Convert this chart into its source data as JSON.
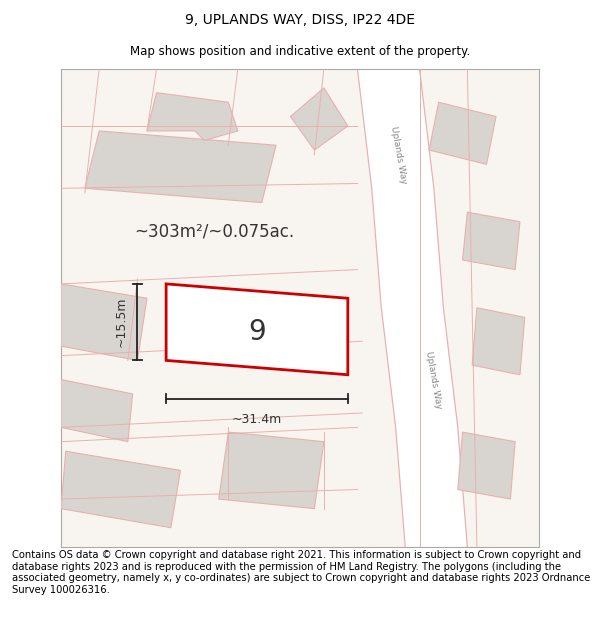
{
  "title": "9, UPLANDS WAY, DISS, IP22 4DE",
  "subtitle": "Map shows position and indicative extent of the property.",
  "footer": "Contains OS data © Crown copyright and database right 2021. This information is subject to Crown copyright and database rights 2023 and is reproduced with the permission of HM Land Registry. The polygons (including the associated geometry, namely x, y co-ordinates) are subject to Crown copyright and database rights 2023 Ordnance Survey 100026316.",
  "area_text": "~303m²/~0.075ac.",
  "width_text": "~31.4m",
  "height_text": "~15.5m",
  "house_number": "9",
  "road_label": "Uplands Way",
  "title_fontsize": 10,
  "subtitle_fontsize": 8.5,
  "footer_fontsize": 7.2,
  "highlight_color": "#cc0000",
  "road_line_color": "#e8b0b0",
  "building_fill": "#d8d5d0",
  "building_edge": "#e8b0b0",
  "map_bg": "#f8f5f0",
  "road_fill": "#ffffff",
  "dim_color": "#222222"
}
